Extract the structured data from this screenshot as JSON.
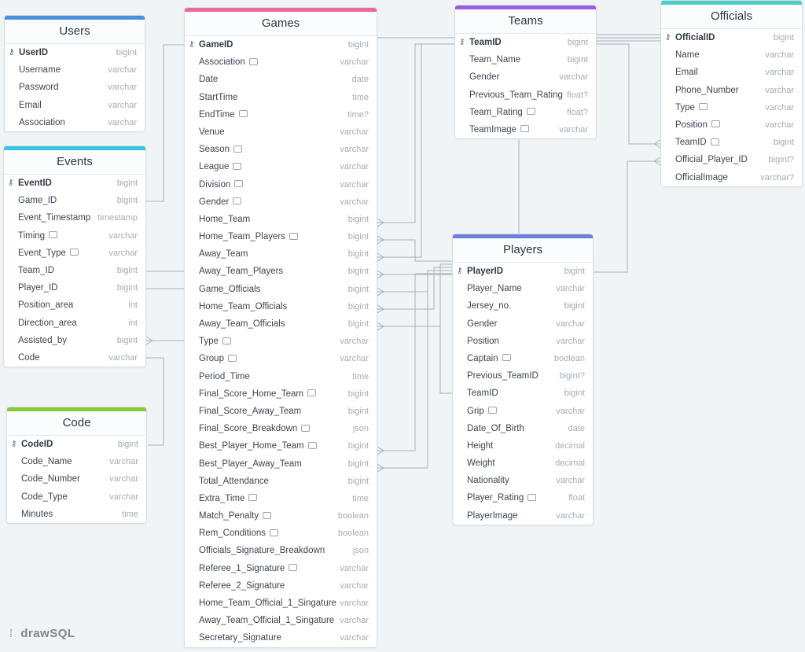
{
  "colors": {
    "users": "#4a90e2",
    "events": "#38c5e6",
    "code": "#8cc63f",
    "games": "#f0679b",
    "teams": "#9b5de5",
    "officials": "#4ecdc4",
    "players": "#6a7fd6",
    "link": "#a7b0bd"
  },
  "brand": "drawSQL",
  "tables": [
    {
      "id": "users",
      "title": "Users",
      "color": "#4a90e2",
      "columns": [
        {
          "name": "UserID",
          "type": "bigint",
          "pk": true
        },
        {
          "name": "Username",
          "type": "varchar"
        },
        {
          "name": "Password",
          "type": "varchar"
        },
        {
          "name": "Email",
          "type": "varchar"
        },
        {
          "name": "Association",
          "type": "varchar"
        }
      ]
    },
    {
      "id": "events",
      "title": "Events",
      "color": "#38c5e6",
      "columns": [
        {
          "name": "EventID",
          "type": "bigint",
          "pk": true
        },
        {
          "name": "Game_ID",
          "type": "bigint"
        },
        {
          "name": "Event_Timestamp",
          "type": "timestamp"
        },
        {
          "name": "Timing",
          "type": "varchar",
          "comment": true
        },
        {
          "name": "Event_Type",
          "type": "varchar",
          "comment": true
        },
        {
          "name": "Team_ID",
          "type": "bigint"
        },
        {
          "name": "Player_ID",
          "type": "bigint"
        },
        {
          "name": "Position_area",
          "type": "int"
        },
        {
          "name": "Direction_area",
          "type": "int"
        },
        {
          "name": "Assisted_by",
          "type": "bigint"
        },
        {
          "name": "Code",
          "type": "varchar"
        }
      ]
    },
    {
      "id": "code",
      "title": "Code",
      "color": "#8cc63f",
      "columns": [
        {
          "name": "CodeID",
          "type": "bigint",
          "pk": true
        },
        {
          "name": "Code_Name",
          "type": "varchar"
        },
        {
          "name": "Code_Number",
          "type": "varchar"
        },
        {
          "name": "Code_Type",
          "type": "varchar"
        },
        {
          "name": "Minutes",
          "type": "time"
        }
      ]
    },
    {
      "id": "games",
      "title": "Games",
      "color": "#f0679b",
      "columns": [
        {
          "name": "GameID",
          "type": "bigint",
          "pk": true
        },
        {
          "name": "Association",
          "type": "varchar",
          "comment": true
        },
        {
          "name": "Date",
          "type": "date"
        },
        {
          "name": "StartTime",
          "type": "time"
        },
        {
          "name": "EndTime",
          "type": "time?",
          "comment": true
        },
        {
          "name": "Venue",
          "type": "varchar"
        },
        {
          "name": "Season",
          "type": "varchar",
          "comment": true
        },
        {
          "name": "League",
          "type": "varchar",
          "comment": true
        },
        {
          "name": "Division",
          "type": "varchar",
          "comment": true
        },
        {
          "name": "Gender",
          "type": "varchar",
          "comment": true
        },
        {
          "name": "Home_Team",
          "type": "bigint"
        },
        {
          "name": "Home_Team_Players",
          "type": "bigint",
          "comment": true
        },
        {
          "name": "Away_Team",
          "type": "bigint"
        },
        {
          "name": "Away_Team_Players",
          "type": "bigint"
        },
        {
          "name": "Game_Officials",
          "type": "bigint"
        },
        {
          "name": "Home_Team_Officials",
          "type": "bigint"
        },
        {
          "name": "Away_Team_Officials",
          "type": "bigint"
        },
        {
          "name": "Type",
          "type": "varchar",
          "comment": true
        },
        {
          "name": "Group",
          "type": "varchar",
          "comment": true
        },
        {
          "name": "Period_Time",
          "type": "time"
        },
        {
          "name": "Final_Score_Home_Team",
          "type": "bigint",
          "comment": true
        },
        {
          "name": "Final_Score_Away_Team",
          "type": "bigint"
        },
        {
          "name": "Final_Score_Breakdown",
          "type": "json",
          "comment": true
        },
        {
          "name": "Best_Player_Home_Team",
          "type": "bigint",
          "comment": true
        },
        {
          "name": "Best_Player_Away_Team",
          "type": "bigint"
        },
        {
          "name": "Total_Attendance",
          "type": "bigint"
        },
        {
          "name": "Extra_Time",
          "type": "time",
          "comment": true
        },
        {
          "name": "Match_Penalty",
          "type": "boolean",
          "comment": true
        },
        {
          "name": "Rem_Conditions",
          "type": "boolean",
          "comment": true
        },
        {
          "name": "Officials_Signature_Breakdown",
          "type": "json"
        },
        {
          "name": "Referee_1_Signature",
          "type": "varchar",
          "comment": true
        },
        {
          "name": "Referee_2_Signature",
          "type": "varchar"
        },
        {
          "name": "Home_Team_Official_1_Singature",
          "type": "varchar"
        },
        {
          "name": "Away_Team_Official_1_Singature",
          "type": "varchar"
        },
        {
          "name": "Secretary_Signature",
          "type": "varchar"
        }
      ]
    },
    {
      "id": "teams",
      "title": "Teams",
      "color": "#9b5de5",
      "columns": [
        {
          "name": "TeamID",
          "type": "bigint",
          "pk": true
        },
        {
          "name": "Team_Name",
          "type": "bigint"
        },
        {
          "name": "Gender",
          "type": "varchar"
        },
        {
          "name": "Previous_Team_Rating",
          "type": "float?"
        },
        {
          "name": "Team_Rating",
          "type": "float?",
          "comment": true
        },
        {
          "name": "TeamImage",
          "type": "varchar",
          "comment": true
        }
      ]
    },
    {
      "id": "officials",
      "title": "Officials",
      "color": "#4ecdc4",
      "columns": [
        {
          "name": "OfficialID",
          "type": "bigint",
          "pk": true
        },
        {
          "name": "Name",
          "type": "varchar"
        },
        {
          "name": "Email",
          "type": "varchar"
        },
        {
          "name": "Phone_Number",
          "type": "varchar"
        },
        {
          "name": "Type",
          "type": "varchar",
          "comment": true
        },
        {
          "name": "Position",
          "type": "varchar",
          "comment": true
        },
        {
          "name": "TeamID",
          "type": "bigint",
          "comment": true
        },
        {
          "name": "Official_Player_ID",
          "type": "bigint?"
        },
        {
          "name": "OfficialImage",
          "type": "varchar?"
        }
      ]
    },
    {
      "id": "players",
      "title": "Players",
      "color": "#6a7fd6",
      "columns": [
        {
          "name": "PlayerID",
          "type": "bigint",
          "pk": true
        },
        {
          "name": "Player_Name",
          "type": "varchar"
        },
        {
          "name": "Jersey_no.",
          "type": "bigint"
        },
        {
          "name": "Gender",
          "type": "varchar"
        },
        {
          "name": "Position",
          "type": "varchar"
        },
        {
          "name": "Captain",
          "type": "boolean",
          "comment": true
        },
        {
          "name": "Previous_TeamID",
          "type": "bigint?"
        },
        {
          "name": "TeamID",
          "type": "bigint"
        },
        {
          "name": "Grip",
          "type": "varchar",
          "comment": true
        },
        {
          "name": "Date_Of_Birth",
          "type": "date"
        },
        {
          "name": "Height",
          "type": "decimal"
        },
        {
          "name": "Weight",
          "type": "decimal"
        },
        {
          "name": "Nationality",
          "type": "varchar"
        },
        {
          "name": "Player_Rating",
          "type": "float",
          "comment": true
        },
        {
          "name": "PlayerImage",
          "type": "varchar"
        }
      ]
    }
  ]
}
